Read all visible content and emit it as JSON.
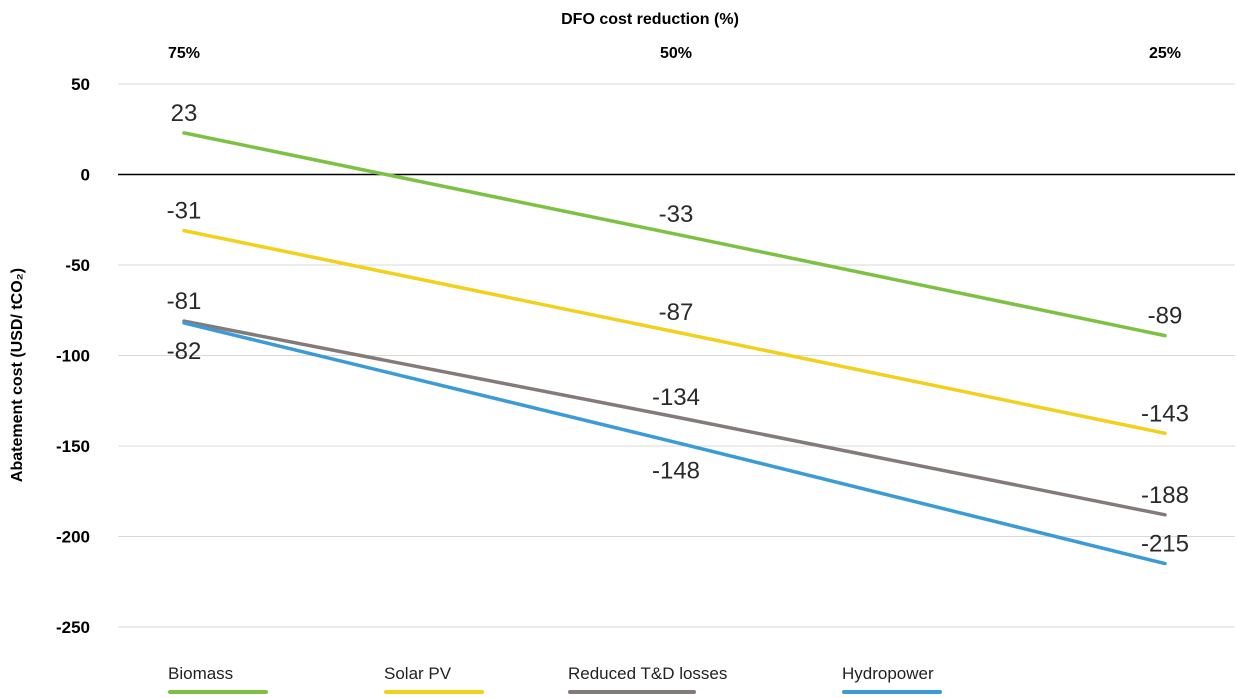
{
  "chart_data": {
    "type": "line",
    "title": "",
    "xlabel": "DFO cost reduction (%)",
    "ylabel": "Abatement cost (USD/ tCO₂)",
    "categories": [
      "75%",
      "50%",
      "25%"
    ],
    "ylim": [
      -250,
      50
    ],
    "yticks": [
      50,
      0,
      -50,
      -100,
      -150,
      -200,
      -250
    ],
    "x_axis_position": "top",
    "grid": true,
    "legend_position": "bottom",
    "series": [
      {
        "name": "Biomass",
        "color": "#7dc142",
        "values": [
          23,
          -33,
          -89
        ]
      },
      {
        "name": "Solar PV",
        "color": "#f2d01b",
        "values": [
          -31,
          -87,
          -143
        ]
      },
      {
        "name": "Reduced T&D losses",
        "color": "#857a7a",
        "values": [
          -81,
          -134,
          -188
        ]
      },
      {
        "name": "Hydropower",
        "color": "#3a9bd6",
        "values": [
          -82,
          -148,
          -215
        ]
      }
    ]
  }
}
